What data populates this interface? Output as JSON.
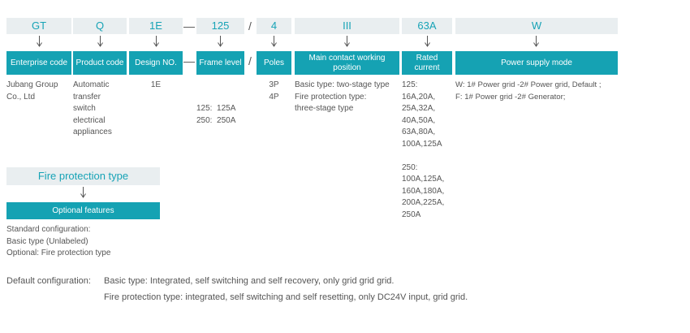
{
  "columns": [
    {
      "code": "GT",
      "header": "Enterprise code",
      "desc": [
        "Jubang Group",
        "Co., Ltd"
      ]
    },
    {
      "code": "Q",
      "header": "Product code",
      "desc": [
        "Automatic",
        "transfer",
        "switch",
        "electrical",
        "appliances"
      ]
    },
    {
      "code": "1E",
      "header": "Design NO.",
      "desc": [
        "1E"
      ]
    },
    {
      "code": "125",
      "header": "Frame level",
      "desc": [
        "125:  125A",
        "250:  250A"
      ]
    },
    {
      "code": "4",
      "header": "Poles",
      "desc": [
        "3P",
        "4P"
      ]
    },
    {
      "code": "III",
      "header": "Main contact working position",
      "desc": [
        "Basic type: two-stage type",
        "Fire protection type:",
        "three-stage type"
      ]
    },
    {
      "code": "63A",
      "header": "Rated current",
      "desc": [
        "125:",
        "16A,20A,",
        "25A,32A,",
        "40A,50A,",
        "63A,80A,",
        "100A,125A",
        "",
        "250:",
        "100A,125A,",
        "160A,180A,",
        "200A,225A,",
        "250A"
      ]
    },
    {
      "code": "W",
      "header": "Power supply mode",
      "desc": [
        "W: 1# Power grid -2# Power grid, Default ;",
        "F: 1# Power grid -2# Generator;"
      ]
    }
  ],
  "separators": {
    "dash": "—",
    "slash": "/"
  },
  "fire": {
    "title": "Fire protection type",
    "header": "Optional features",
    "desc": [
      "Standard configuration:",
      "Basic type (Unlabeled)",
      "Optional: Fire protection type"
    ]
  },
  "default_config": {
    "label": "Default configuration:",
    "line1": "Basic type: Integrated, self switching and self recovery, only grid grid grid.",
    "line2": "Fire protection type: integrated, self switching and self resetting, only DC24V input, grid grid."
  }
}
